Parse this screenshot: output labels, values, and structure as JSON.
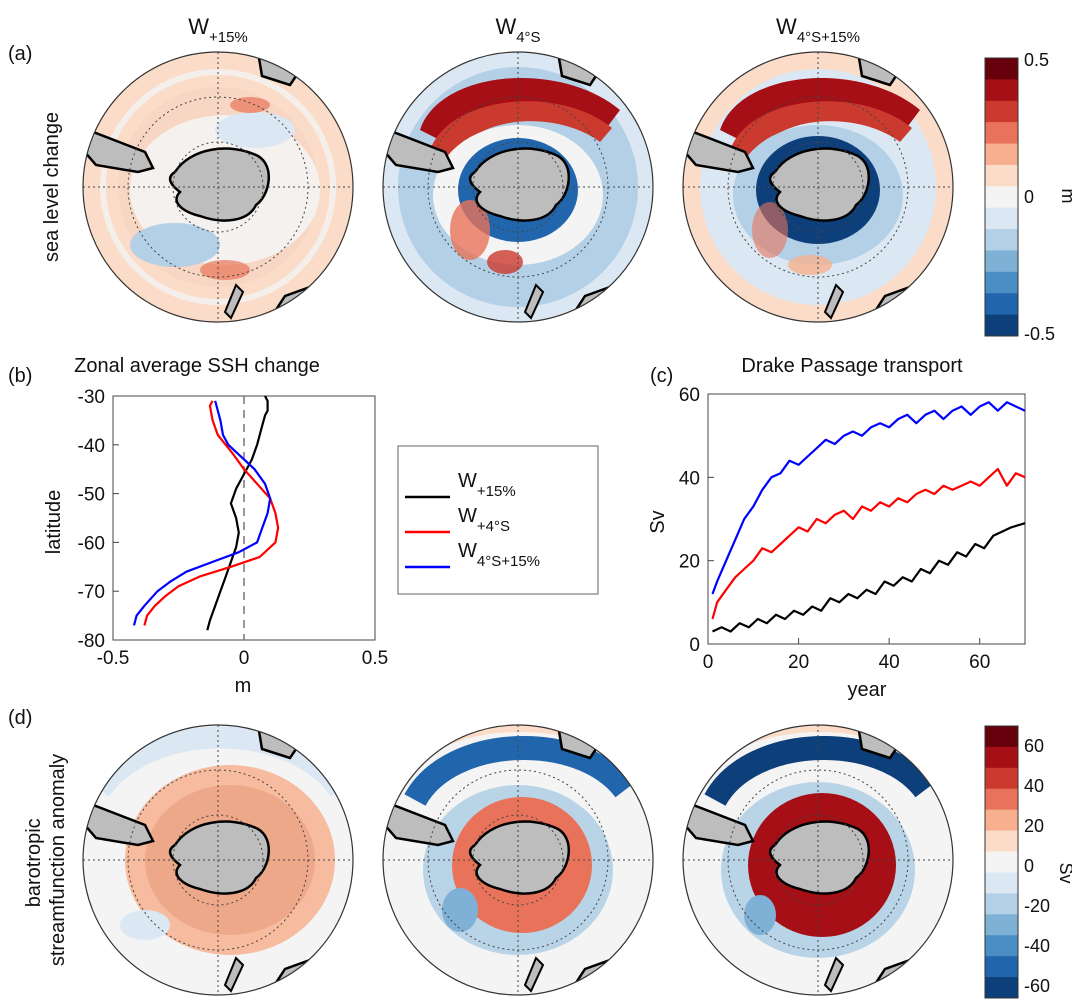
{
  "panel_a": {
    "label": "(a)",
    "row_label": "sea level change",
    "maps": [
      {
        "title_base": "W",
        "title_sub": "+15%"
      },
      {
        "title_base": "W",
        "title_sub": "4°S"
      },
      {
        "title_base": "W",
        "title_sub": "4°S+15%"
      }
    ],
    "colorbar": {
      "ticks": [
        "0.5",
        "0",
        "-0.5"
      ],
      "unit": "m",
      "colors": [
        "#67000d",
        "#a50f15",
        "#cb3a2f",
        "#e8735a",
        "#f7b08f",
        "#fbdcc8",
        "#f4f4f4",
        "#dbe8f3",
        "#b3d0e6",
        "#7fb0d6",
        "#4a8ec4",
        "#2166ac",
        "#0d3f7a"
      ]
    }
  },
  "panel_d": {
    "label": "(d)",
    "row_label_1": "barotropic",
    "row_label_2": "streamfunction anomaly",
    "colorbar": {
      "ticks": [
        "60",
        "40",
        "20",
        "0",
        "-20",
        "-40",
        "-60"
      ],
      "unit": "Sv",
      "colors": [
        "#67000d",
        "#a50f15",
        "#cb3a2f",
        "#e8735a",
        "#f7b08f",
        "#fbdcc8",
        "#f4f4f4",
        "#dbe8f3",
        "#b3d0e6",
        "#7fb0d6",
        "#4a8ec4",
        "#2166ac",
        "#0d3f7a"
      ]
    }
  },
  "chart_data": [
    {
      "type": "line",
      "panel": "(b)",
      "title": "Zonal average SSH change",
      "xlabel": "m",
      "ylabel": "latitude",
      "xlim": [
        -0.5,
        0.5
      ],
      "ylim": [
        -80,
        -30
      ],
      "xticks": [
        "-0.5",
        "0",
        "0.5"
      ],
      "yticks": [
        "-30",
        "-40",
        "-50",
        "-60",
        "-70",
        "-80"
      ],
      "legend_position": "right",
      "series": [
        {
          "name_base": "W",
          "name_sub": "+15%",
          "color": "#000000",
          "x": [
            -0.14,
            -0.13,
            -0.11,
            -0.09,
            -0.07,
            -0.05,
            -0.03,
            -0.02,
            -0.03,
            -0.05,
            -0.03,
            0.0,
            0.03,
            0.05,
            0.06,
            0.07,
            0.08,
            0.09,
            0.09,
            0.08
          ],
          "y": [
            -78,
            -76,
            -73,
            -70,
            -67,
            -64,
            -61,
            -58,
            -55,
            -52,
            -49,
            -46,
            -43,
            -40,
            -38,
            -36,
            -34,
            -33,
            -31,
            -30
          ]
        },
        {
          "name_base": "W",
          "name_sub": "+4°S",
          "color": "#ff0000",
          "x": [
            -0.38,
            -0.37,
            -0.34,
            -0.3,
            -0.25,
            -0.17,
            -0.05,
            0.06,
            0.12,
            0.13,
            0.12,
            0.1,
            0.05,
            0.0,
            -0.04,
            -0.07,
            -0.1,
            -0.12,
            -0.13,
            -0.12
          ],
          "y": [
            -77,
            -75,
            -73,
            -71,
            -69,
            -67,
            -65,
            -63,
            -60,
            -57,
            -54,
            -51,
            -48,
            -45,
            -42,
            -40,
            -38,
            -35,
            -32,
            -31
          ]
        },
        {
          "name_base": "W",
          "name_sub": "4°S+15%",
          "color": "#0000ff",
          "x": [
            -0.42,
            -0.41,
            -0.38,
            -0.33,
            -0.28,
            -0.22,
            -0.12,
            -0.02,
            0.05,
            0.07,
            0.09,
            0.1,
            0.08,
            0.04,
            -0.02,
            -0.06,
            -0.08,
            -0.09,
            -0.1,
            -0.11
          ],
          "y": [
            -77,
            -75,
            -73,
            -70,
            -68,
            -66,
            -64,
            -62,
            -60,
            -57,
            -54,
            -51,
            -48,
            -45,
            -42,
            -40,
            -38,
            -35,
            -33,
            -31
          ]
        }
      ]
    },
    {
      "type": "line",
      "panel": "(c)",
      "title": "Drake Passage transport",
      "xlabel": "year",
      "ylabel": "Sv",
      "xlim": [
        0,
        70
      ],
      "ylim": [
        0,
        60
      ],
      "xticks": [
        "0",
        "20",
        "40",
        "60"
      ],
      "yticks": [
        "0",
        "20",
        "40",
        "60"
      ],
      "series": [
        {
          "color": "#000000",
          "x": [
            1,
            3,
            5,
            7,
            9,
            11,
            13,
            15,
            17,
            19,
            21,
            23,
            25,
            27,
            29,
            31,
            33,
            35,
            37,
            39,
            41,
            43,
            45,
            47,
            49,
            51,
            53,
            55,
            57,
            59,
            61,
            63,
            65,
            67,
            70
          ],
          "y": [
            3,
            4,
            3,
            5,
            4,
            6,
            5,
            7,
            6,
            8,
            7,
            9,
            8,
            11,
            10,
            12,
            11,
            13,
            12,
            15,
            14,
            16,
            15,
            18,
            17,
            20,
            19,
            22,
            21,
            24,
            23,
            26,
            27,
            28,
            29
          ]
        },
        {
          "color": "#ff0000",
          "x": [
            1,
            2,
            4,
            6,
            8,
            10,
            12,
            14,
            16,
            18,
            20,
            22,
            24,
            26,
            28,
            30,
            32,
            34,
            36,
            38,
            40,
            42,
            44,
            46,
            48,
            50,
            52,
            54,
            56,
            58,
            60,
            62,
            64,
            66,
            68,
            70
          ],
          "y": [
            6,
            10,
            13,
            16,
            18,
            20,
            23,
            22,
            24,
            26,
            28,
            27,
            30,
            29,
            31,
            32,
            30,
            33,
            32,
            34,
            33,
            35,
            34,
            36,
            37,
            36,
            38,
            37,
            38,
            39,
            38,
            40,
            42,
            38,
            41,
            40
          ]
        },
        {
          "color": "#0000ff",
          "x": [
            1,
            2,
            4,
            6,
            8,
            10,
            12,
            14,
            16,
            18,
            20,
            22,
            24,
            26,
            28,
            30,
            32,
            34,
            36,
            38,
            40,
            42,
            44,
            46,
            48,
            50,
            52,
            54,
            56,
            58,
            60,
            62,
            64,
            66,
            68,
            70
          ],
          "y": [
            12,
            15,
            20,
            25,
            30,
            33,
            37,
            40,
            41,
            44,
            43,
            45,
            47,
            49,
            48,
            50,
            51,
            50,
            52,
            53,
            52,
            54,
            55,
            53,
            55,
            56,
            54,
            56,
            57,
            55,
            57,
            58,
            56,
            58,
            57,
            56
          ]
        }
      ]
    }
  ]
}
